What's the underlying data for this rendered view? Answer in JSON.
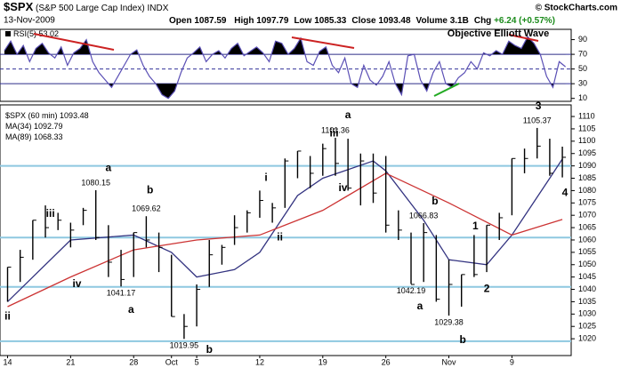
{
  "header": {
    "symbol": "$SPX",
    "name": "(S&P 500 Large Cap Index) INDX",
    "date": "13-Nov-2009",
    "stats": [
      {
        "label": "Open",
        "value": 1087.59
      },
      {
        "label": "High",
        "value": 1097.79
      },
      {
        "label": "Low",
        "value": 1085.33
      },
      {
        "label": "Close",
        "value": 1093.48
      },
      {
        "label": "Volume",
        "value": "3.1B"
      },
      {
        "label": "Chg",
        "value": "+6.24 (+0.57%)"
      }
    ],
    "source": "Objective Elliott Wave",
    "copyright": "© StockCharts.com"
  },
  "chart_data": [
    {
      "type": "line",
      "label": "RSI(5)",
      "color": "#5a4fb5",
      "x": [
        -0.25,
        0.25,
        0.75,
        1.25,
        1.75,
        2.25,
        2.75,
        3.25,
        3.75,
        4.25,
        4.75,
        5.25,
        5.75,
        6.25,
        6.75,
        7.25,
        7.75,
        8.25,
        8.75,
        9.25,
        9.75,
        10.25,
        10.75,
        11.25,
        11.75,
        12.25,
        12.75,
        13.25,
        13.75,
        14.25,
        14.75,
        15.25,
        15.75,
        16.25,
        16.75,
        17.25,
        17.75,
        18.25,
        18.75,
        19.25,
        19.75,
        20.25,
        20.75,
        21.25,
        21.75,
        22.25,
        22.75,
        23.25,
        23.75,
        24.25,
        24.75,
        25.25,
        25.75,
        26.25,
        26.75,
        27.25,
        27.75,
        28.25,
        28.75,
        29.25,
        29.75,
        30.25,
        30.75,
        31.25,
        31.75,
        32.25,
        32.75,
        33.25,
        33.75,
        34.25,
        34.75,
        35.25,
        35.75,
        36.25,
        36.75,
        37.25,
        37.75,
        38.25,
        38.75,
        39.25,
        39.75,
        40.25,
        40.75,
        41.25,
        41.75,
        42.25,
        42.75,
        43.25,
        43.75,
        44.25
      ],
      "values": [
        75,
        88,
        70,
        82,
        60,
        78,
        85,
        72,
        65,
        80,
        55,
        72,
        78,
        90,
        60,
        45,
        35,
        25,
        40,
        55,
        70,
        76,
        55,
        40,
        30,
        15,
        10,
        20,
        45,
        65,
        72,
        80,
        60,
        70,
        75,
        65,
        78,
        85,
        68,
        74,
        80,
        72,
        60,
        88,
        85,
        70,
        78,
        92,
        60,
        55,
        74,
        80,
        55,
        45,
        65,
        30,
        25,
        55,
        35,
        28,
        40,
        60,
        30,
        15,
        68,
        70,
        35,
        20,
        45,
        60,
        30,
        25,
        38,
        45,
        60,
        50,
        72,
        68,
        75,
        70,
        88,
        82,
        78,
        94,
        85,
        70,
        40,
        25,
        60,
        53.02
      ],
      "xlim": [
        -0.6,
        44.7
      ],
      "ylim": [
        6,
        104
      ],
      "yticks": [
        10,
        30,
        50,
        70,
        90
      ],
      "overbought": 70,
      "midline": 50,
      "oversold": 30,
      "fill_color": "#000000",
      "level_color": "#333399"
    },
    {
      "type": "ohlc",
      "label": "$SPX (60 min)",
      "color": "#000000",
      "x": [
        0,
        1,
        2,
        3,
        4,
        5,
        6,
        7,
        8,
        9,
        10,
        11,
        12,
        13,
        14,
        15,
        16,
        17,
        18,
        19,
        20,
        21,
        22,
        23,
        24,
        25,
        26,
        27,
        28,
        29,
        30,
        31,
        32,
        33,
        34,
        35,
        36,
        37,
        38,
        39,
        40,
        41,
        42,
        43,
        44
      ],
      "high": [
        1049,
        1056,
        1068,
        1074,
        1071,
        1067,
        1073,
        1080.15,
        1066,
        1056,
        1063,
        1069.62,
        1063,
        1054,
        1030,
        1042,
        1060,
        1058,
        1070,
        1072,
        1080,
        1075,
        1093,
        1096,
        1094,
        1099,
        1101.36,
        1101,
        1095,
        1095,
        1094,
        1072,
        1063,
        1066.83,
        1062,
        1052,
        1046,
        1062,
        1066,
        1071,
        1093,
        1097,
        1105.37,
        1101,
        1097.79
      ],
      "low": [
        1035,
        1043,
        1052,
        1061,
        1064,
        1057,
        1066,
        1060,
        1045,
        1041.17,
        1045,
        1057,
        1047,
        1029,
        1019.95,
        1025,
        1041,
        1050,
        1058,
        1063,
        1069,
        1067,
        1073,
        1085,
        1081,
        1086,
        1086,
        1080,
        1074,
        1075,
        1063,
        1060,
        1042.19,
        1043,
        1035,
        1029.38,
        1033,
        1045,
        1047,
        1060,
        1070,
        1087,
        1093,
        1086,
        1085.33
      ],
      "close": [
        1049,
        1053,
        1068,
        1065,
        1068,
        1064,
        1072,
        1061,
        1051,
        1044,
        1063,
        1060,
        1057,
        1029,
        1025,
        1040,
        1054,
        1057,
        1065,
        1071,
        1076,
        1073,
        1092,
        1096,
        1087,
        1097,
        1091,
        1081,
        1092,
        1079,
        1066,
        1064,
        1042,
        1063,
        1036,
        1042,
        1046,
        1046,
        1066,
        1069,
        1093,
        1093,
        1098,
        1087,
        1093.48
      ],
      "ma": [
        {
          "name": "MA(34)",
          "color": "#333380",
          "x": [
            0,
            5,
            10,
            13,
            15,
            18,
            20,
            23,
            25,
            29,
            30,
            33,
            35,
            38,
            40,
            43,
            44
          ],
          "values": [
            1035,
            1060,
            1062,
            1055,
            1045,
            1048,
            1055,
            1078,
            1085,
            1092,
            1088,
            1068,
            1052,
            1050,
            1062,
            1085,
            1092.79
          ]
        },
        {
          "name": "MA(89)",
          "color": "#cc3333",
          "x": [
            0,
            5,
            10,
            15,
            20,
            25,
            30,
            35,
            40,
            44
          ],
          "values": [
            1033,
            1045,
            1056,
            1060,
            1062,
            1072,
            1087,
            1075,
            1062,
            1068.33
          ]
        }
      ],
      "hlines": [
        1090,
        1061,
        1041,
        1019
      ],
      "hline_color": "#8ec8e0",
      "xlim": [
        -0.6,
        44.7
      ],
      "ylim": [
        1013.2,
        1114.7
      ],
      "xticks": [
        {
          "value": 0,
          "label": "14"
        },
        {
          "value": 5,
          "label": "21"
        },
        {
          "value": 10,
          "label": "28"
        },
        {
          "value": 13,
          "label": "Oct"
        },
        {
          "value": 15,
          "label": "5"
        },
        {
          "value": 20,
          "label": "12"
        },
        {
          "value": 25,
          "label": "19"
        },
        {
          "value": 30,
          "label": "26"
        },
        {
          "value": 35,
          "label": "Nov"
        },
        {
          "value": 40,
          "label": "9"
        }
      ],
      "yticks": [
        1020,
        1025,
        1030,
        1035,
        1040,
        1045,
        1050,
        1055,
        1060,
        1065,
        1070,
        1075,
        1080,
        1085,
        1090,
        1095,
        1100,
        1105,
        1110
      ],
      "price_labels": [
        {
          "value": 1080.15,
          "x": 7
        },
        {
          "value": 1069.62,
          "x": 11
        },
        {
          "value": 1041.17,
          "x": 9
        },
        {
          "value": 1019.95,
          "x": 14
        },
        {
          "value": 1101.36,
          "x": 26
        },
        {
          "value": 1066.83,
          "x": 33
        },
        {
          "value": 1042.19,
          "x": 32
        },
        {
          "value": 1029.38,
          "x": 35
        },
        {
          "value": 1105.37,
          "x": 42
        }
      ],
      "annotations": [
        {
          "text": "ii",
          "color": "#e07b00",
          "x": 0,
          "y": 1029
        },
        {
          "text": "iii",
          "color": "#e07b00",
          "x": 3.4,
          "y": 1070.5
        },
        {
          "text": "iv",
          "color": "#e07b00",
          "x": 5.5,
          "y": 1042
        },
        {
          "text": "a",
          "color": "#2a8a8a",
          "x": 8,
          "y": 1089
        },
        {
          "text": "b",
          "color": "#e07b00",
          "x": 11.3,
          "y": 1080
        },
        {
          "text": "a",
          "color": "#e07b00",
          "x": 9.8,
          "y": 1031.6
        },
        {
          "text": "b",
          "color": "#2a8a8a",
          "x": 16,
          "y": 1015.4
        },
        {
          "text": "i",
          "color": "#e07b00",
          "x": 20.5,
          "y": 1085
        },
        {
          "text": "ii",
          "color": "#e07b00",
          "x": 21.6,
          "y": 1061
        },
        {
          "text": "iii",
          "color": "#e07b00",
          "x": 25.9,
          "y": 1103
        },
        {
          "text": "a",
          "color": "#333399",
          "x": 27,
          "y": 1110.4
        },
        {
          "text": "iv",
          "color": "#e07b00",
          "x": 26.6,
          "y": 1081
        },
        {
          "text": "b",
          "color": "#1a8a1a",
          "x": 33.9,
          "y": 1075.5
        },
        {
          "text": "a",
          "color": "#1a8a1a",
          "x": 32.7,
          "y": 1033
        },
        {
          "text": "b",
          "color": "#333399",
          "x": 36.1,
          "y": 1019.4
        },
        {
          "text": "1",
          "color": "#1a8a1a",
          "x": 37.1,
          "y": 1065.4
        },
        {
          "text": "2",
          "color": "#1a8a1a",
          "x": 38,
          "y": 1040
        },
        {
          "text": "3",
          "color": "#1a8a1a",
          "x": 42.1,
          "y": 1114
        },
        {
          "text": "4",
          "color": "#1a8a1a",
          "x": 44.2,
          "y": 1079
        }
      ]
    }
  ]
}
